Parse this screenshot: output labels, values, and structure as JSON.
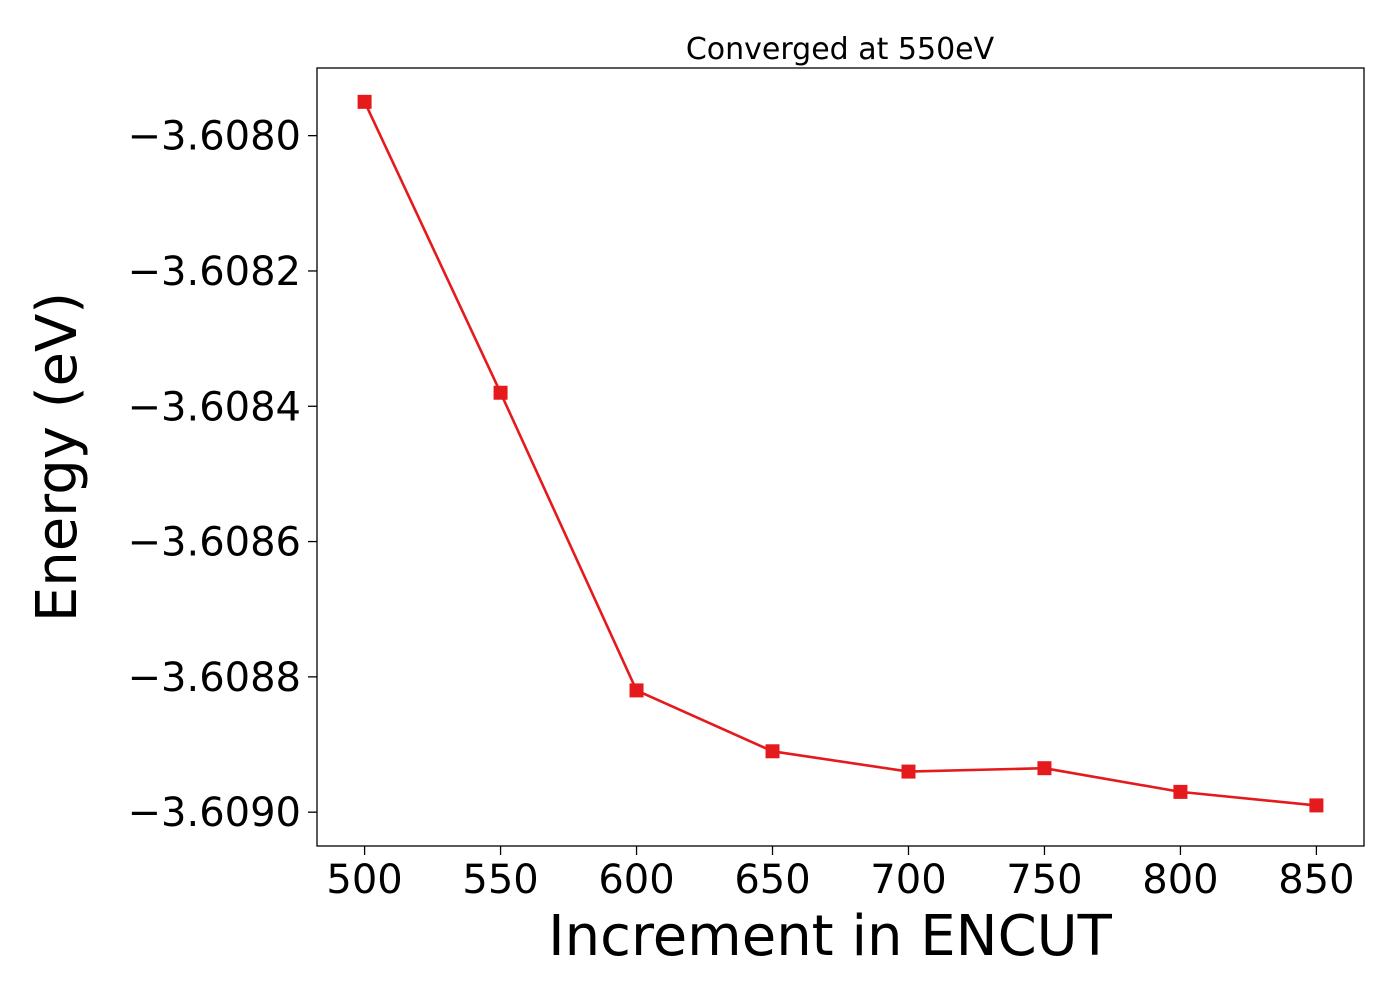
{
  "chart_data": {
    "type": "line",
    "title": "Converged at 550eV",
    "xlabel": "Increment in ENCUT",
    "ylabel": "Energy (eV)",
    "x": [
      500,
      550,
      600,
      650,
      700,
      750,
      800,
      850
    ],
    "series": [
      {
        "values": [
          -3.60795,
          -3.60838,
          -3.60882,
          -3.60891,
          -3.60894,
          -3.608935,
          -3.60897,
          -3.60899
        ],
        "color": "#e41a1c",
        "marker": "square"
      }
    ],
    "xlim": [
      482.5,
      867.5
    ],
    "ylim": [
      -3.60905,
      -3.6079
    ],
    "x_ticks": [
      500,
      550,
      600,
      650,
      700,
      750,
      800,
      850
    ],
    "x_tick_labels": [
      "500",
      "550",
      "600",
      "650",
      "700",
      "750",
      "800",
      "850"
    ],
    "y_ticks": [
      -3.608,
      -3.6082,
      -3.6084,
      -3.6086,
      -3.6088,
      -3.609
    ],
    "y_tick_labels": [
      "−3.6080",
      "−3.6082",
      "−3.6084",
      "−3.6086",
      "−3.6088",
      "−3.6090"
    ],
    "grid": false,
    "legend": "none"
  }
}
